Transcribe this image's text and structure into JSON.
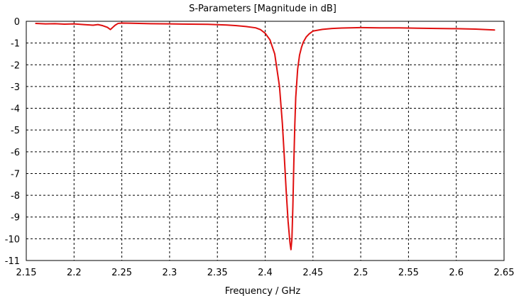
{
  "chart_data": {
    "type": "line",
    "title": "S-Parameters [Magnitude in dB]",
    "xlabel": "Frequency / GHz",
    "ylabel": "",
    "xlim": [
      2.15,
      2.65
    ],
    "ylim": [
      -11,
      0
    ],
    "grid": true,
    "legend": "none",
    "xticks": [
      "2.15",
      "2.2",
      "2.25",
      "2.3",
      "2.35",
      "2.4",
      "2.45",
      "2.5",
      "2.55",
      "2.6",
      "2.65"
    ],
    "yticks": [
      "0",
      "-1",
      "-2",
      "-3",
      "-4",
      "-5",
      "-6",
      "-7",
      "-8",
      "-9",
      "-10",
      "-11"
    ],
    "series": [
      {
        "color": "#e01010",
        "x": [
          2.16,
          2.17,
          2.18,
          2.19,
          2.2,
          2.21,
          2.22,
          2.225,
          2.23,
          2.235,
          2.238,
          2.24,
          2.243,
          2.246,
          2.25,
          2.26,
          2.28,
          2.3,
          2.32,
          2.34,
          2.36,
          2.37,
          2.38,
          2.39,
          2.395,
          2.4,
          2.405,
          2.41,
          2.415,
          2.418,
          2.42,
          2.422,
          2.424,
          2.426,
          2.427,
          2.428,
          2.429,
          2.43,
          2.431,
          2.432,
          2.434,
          2.436,
          2.438,
          2.44,
          2.443,
          2.446,
          2.45,
          2.46,
          2.47,
          2.48,
          2.5,
          2.52,
          2.54,
          2.56,
          2.58,
          2.6,
          2.62,
          2.63,
          2.64
        ],
        "y": [
          -0.1,
          -0.12,
          -0.11,
          -0.13,
          -0.12,
          -0.15,
          -0.18,
          -0.15,
          -0.2,
          -0.28,
          -0.38,
          -0.3,
          -0.18,
          -0.1,
          -0.08,
          -0.09,
          -0.11,
          -0.12,
          -0.13,
          -0.14,
          -0.17,
          -0.2,
          -0.24,
          -0.3,
          -0.38,
          -0.55,
          -0.85,
          -1.5,
          -3.0,
          -4.7,
          -6.2,
          -7.8,
          -9.2,
          -10.2,
          -10.5,
          -10.0,
          -8.5,
          -6.5,
          -4.8,
          -3.5,
          -2.2,
          -1.55,
          -1.2,
          -0.95,
          -0.72,
          -0.58,
          -0.45,
          -0.37,
          -0.33,
          -0.31,
          -0.29,
          -0.3,
          -0.3,
          -0.32,
          -0.33,
          -0.34,
          -0.36,
          -0.38,
          -0.4
        ]
      }
    ]
  }
}
